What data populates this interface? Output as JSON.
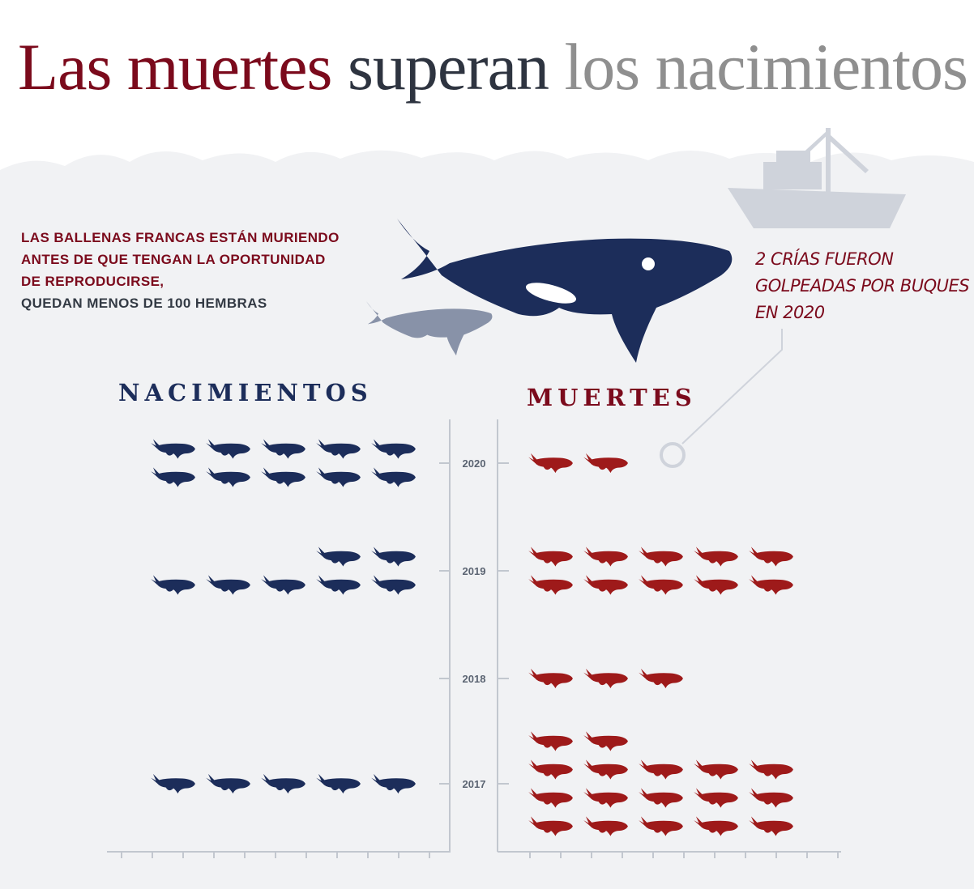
{
  "title": {
    "part1": "Las muertes",
    "part2": "superan",
    "part3": "los nacimientos"
  },
  "intro": {
    "line1": "LAS BALLENAS FRANCAS ESTÁN MURIENDO",
    "line2": "ANTES DE QUE TENGAN LA OPORTUNIDAD",
    "line3": "DE REPRODUCIRSE,",
    "line4": "QUEDAN MENOS DE 100 HEMBRAS"
  },
  "annotation": {
    "line1": "2 CRÍAS FUERON",
    "line2": "GOLPEADAS POR BUQUES",
    "line3": "EN 2020"
  },
  "colors": {
    "births": "#1c2d5a",
    "deaths": "#9e1a1a",
    "title_red": "#7b0a1c",
    "background": "#f1f2f4"
  },
  "icons": [
    "right-whale-icon",
    "ship-icon"
  ],
  "chart_data": {
    "type": "pictogram",
    "unit": "1 whale icon = 1 whale",
    "categories": [
      "2020",
      "2019",
      "2018",
      "2017"
    ],
    "series": [
      {
        "name": "NACIMIENTOS",
        "values": [
          10,
          7,
          0,
          5
        ]
      },
      {
        "name": "MUERTES",
        "values": [
          2,
          10,
          3,
          17
        ]
      }
    ]
  }
}
